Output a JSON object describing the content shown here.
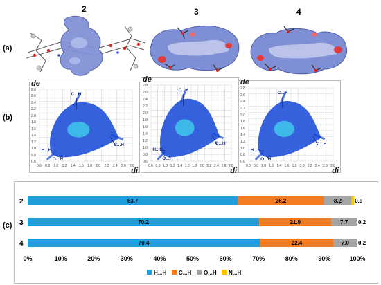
{
  "compounds": [
    "2",
    "3",
    "4"
  ],
  "panels": {
    "a": "(a)",
    "b": "(b)",
    "c": "(c)"
  },
  "fingerprint_axes": {
    "y": "de",
    "x": "di"
  },
  "fingerprint_ticks_x": [
    "0.6",
    "0.8",
    "1.0",
    "1.2",
    "1.4",
    "1.6",
    "1.8",
    "2.0",
    "2.2",
    "2.4",
    "2.6",
    "2.8"
  ],
  "fingerprint_ticks_y": [
    "2.8",
    "2.6",
    "2.4",
    "2.2",
    "2.0",
    "1.8",
    "1.6",
    "1.4",
    "1.2",
    "1.0",
    "0.8",
    "0.6"
  ],
  "fingerprint_annotations": [
    {
      "ch": "C...H",
      "ch2": "C...H",
      "hh": "H...H",
      "oh": "O...H"
    },
    {
      "ch": "C...H",
      "ch2": "C...H",
      "hh": "H...H",
      "oh": "O...H"
    },
    {
      "ch": "C...H",
      "ch2": "C...H",
      "hh": "H...H",
      "oh": "O...H"
    }
  ],
  "colors": {
    "hh": "#1e9fdc",
    "ch": "#f47c20",
    "oh": "#a5a5a5",
    "nh": "#ffc000",
    "surface": "#7f8fd6",
    "fingerprint": "#1446d8"
  },
  "chart_data": {
    "type": "bar",
    "orientation": "horizontal",
    "stacked": "percent",
    "categories": [
      "2",
      "3",
      "4"
    ],
    "series": [
      {
        "name": "H...H",
        "values": [
          63.7,
          70.2,
          70.4
        ]
      },
      {
        "name": "C...H",
        "values": [
          26.2,
          21.9,
          22.4
        ]
      },
      {
        "name": "O...H",
        "values": [
          8.2,
          7.7,
          7.0
        ]
      },
      {
        "name": "N...H",
        "values": [
          0.9,
          0.2,
          0.2
        ]
      }
    ],
    "xlim": [
      0,
      100
    ],
    "x_ticks": [
      "0%",
      "10%",
      "20%",
      "30%",
      "40%",
      "50%",
      "60%",
      "70%",
      "80%",
      "90%",
      "100%"
    ],
    "legend_position": "bottom",
    "grid": false
  }
}
